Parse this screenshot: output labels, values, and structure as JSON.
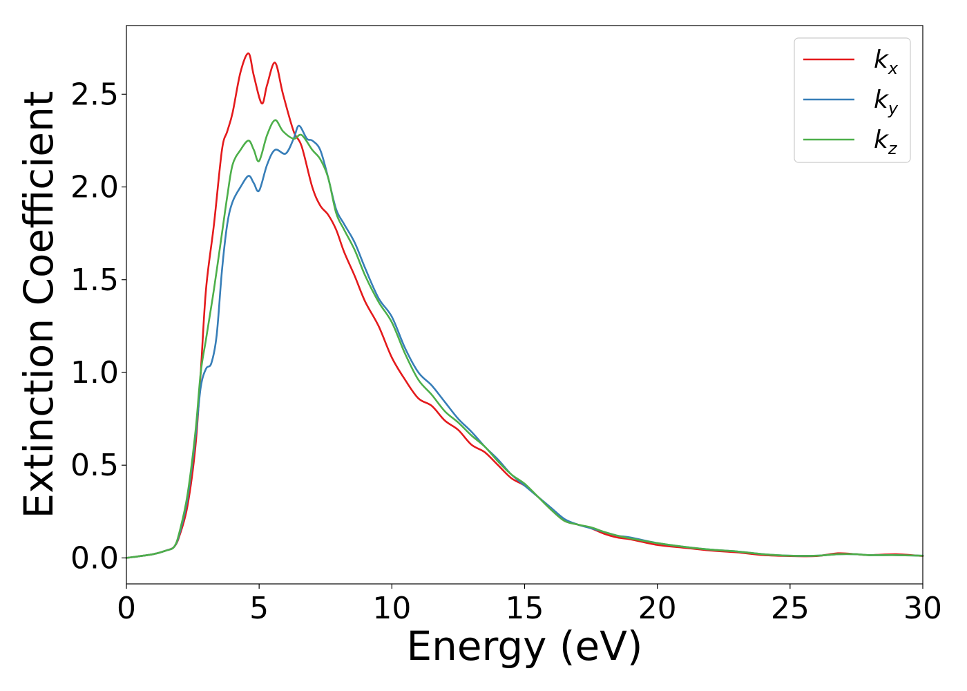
{
  "chart_data": {
    "type": "line",
    "title": "",
    "xlabel": "Energy (eV)",
    "ylabel": "Extinction Coefficient",
    "xlim": [
      0,
      30
    ],
    "ylim": [
      -0.14,
      2.87
    ],
    "xticks": [
      0,
      5,
      10,
      15,
      20,
      25,
      30
    ],
    "xtick_labels": [
      "0",
      "5",
      "10",
      "15",
      "20",
      "25",
      "30"
    ],
    "yticks": [
      0,
      0.5,
      1.0,
      1.5,
      2.0,
      2.5
    ],
    "ytick_labels": [
      "0.0",
      "0.5",
      "1.0",
      "1.5",
      "2.0",
      "2.5"
    ],
    "grid": false,
    "legend_position": "top-right",
    "series": [
      {
        "name": "k_x",
        "label_base": "k",
        "label_sub": "x",
        "color": "#e41a1c",
        "x": [
          0,
          1,
          1.5,
          1.8,
          2.0,
          2.3,
          2.6,
          2.8,
          3.0,
          3.3,
          3.6,
          3.8,
          4.0,
          4.3,
          4.6,
          4.8,
          5.1,
          5.3,
          5.6,
          5.9,
          6.3,
          6.6,
          7.0,
          7.3,
          7.6,
          7.9,
          8.2,
          8.6,
          9.0,
          9.5,
          10.0,
          10.5,
          11.0,
          11.5,
          12.0,
          12.5,
          13.0,
          13.5,
          14.0,
          14.5,
          15.0,
          15.5,
          16.0,
          16.5,
          17.0,
          17.5,
          18.0,
          18.5,
          19.0,
          20.0,
          21.0,
          22.0,
          23.0,
          24.0,
          25.0,
          26.0,
          26.8,
          27.5,
          28.0,
          29.0,
          30.0
        ],
        "y": [
          0.0,
          0.02,
          0.04,
          0.06,
          0.12,
          0.28,
          0.6,
          1.0,
          1.45,
          1.8,
          2.2,
          2.3,
          2.4,
          2.62,
          2.72,
          2.6,
          2.45,
          2.55,
          2.67,
          2.5,
          2.3,
          2.22,
          2.0,
          1.9,
          1.85,
          1.77,
          1.65,
          1.52,
          1.38,
          1.25,
          1.08,
          0.96,
          0.86,
          0.82,
          0.74,
          0.69,
          0.61,
          0.57,
          0.5,
          0.43,
          0.39,
          0.33,
          0.26,
          0.2,
          0.18,
          0.16,
          0.13,
          0.11,
          0.1,
          0.07,
          0.055,
          0.04,
          0.03,
          0.015,
          0.01,
          0.01,
          0.025,
          0.02,
          0.015,
          0.02,
          0.01
        ]
      },
      {
        "name": "k_y",
        "label_base": "k",
        "label_sub": "y",
        "color": "#377eb8",
        "x": [
          0,
          1,
          1.5,
          1.8,
          2.0,
          2.3,
          2.6,
          2.8,
          3.0,
          3.2,
          3.4,
          3.6,
          3.8,
          4.0,
          4.3,
          4.6,
          4.8,
          5.0,
          5.3,
          5.6,
          6.0,
          6.3,
          6.5,
          6.8,
          7.0,
          7.3,
          7.6,
          7.9,
          8.2,
          8.6,
          9.0,
          9.5,
          10.0,
          10.5,
          11.0,
          11.5,
          12.0,
          12.5,
          13.0,
          13.5,
          14.0,
          14.5,
          15.0,
          15.5,
          16.0,
          16.5,
          17.0,
          17.5,
          18.0,
          18.5,
          19.0,
          20.0,
          21.0,
          22.0,
          23.0,
          24.0,
          25.0,
          26.0,
          26.8,
          27.5,
          28.0,
          29.0,
          30.0
        ],
        "y": [
          0.0,
          0.02,
          0.04,
          0.06,
          0.13,
          0.32,
          0.65,
          0.92,
          1.02,
          1.05,
          1.2,
          1.55,
          1.8,
          1.92,
          2.0,
          2.06,
          2.02,
          1.98,
          2.12,
          2.2,
          2.18,
          2.26,
          2.33,
          2.26,
          2.25,
          2.2,
          2.05,
          1.88,
          1.8,
          1.7,
          1.56,
          1.4,
          1.3,
          1.13,
          1.0,
          0.93,
          0.84,
          0.75,
          0.68,
          0.6,
          0.53,
          0.45,
          0.39,
          0.33,
          0.27,
          0.21,
          0.18,
          0.16,
          0.14,
          0.12,
          0.11,
          0.08,
          0.06,
          0.045,
          0.035,
          0.02,
          0.012,
          0.012,
          0.02,
          0.02,
          0.015,
          0.015,
          0.012
        ]
      },
      {
        "name": "k_z",
        "label_base": "k",
        "label_sub": "z",
        "color": "#4daf4a",
        "x": [
          0,
          1,
          1.5,
          1.8,
          2.0,
          2.3,
          2.6,
          2.8,
          3.0,
          3.3,
          3.6,
          3.8,
          4.0,
          4.3,
          4.6,
          4.8,
          5.0,
          5.3,
          5.6,
          5.9,
          6.3,
          6.6,
          7.0,
          7.3,
          7.6,
          7.9,
          8.2,
          8.6,
          9.0,
          9.5,
          10.0,
          10.5,
          11.0,
          11.5,
          12.0,
          12.5,
          13.0,
          13.5,
          14.0,
          14.5,
          15.0,
          15.5,
          16.0,
          16.5,
          17.0,
          17.5,
          18.0,
          18.5,
          19.0,
          20.0,
          21.0,
          22.0,
          23.0,
          24.0,
          25.0,
          26.0,
          26.8,
          27.5,
          28.0,
          29.0,
          30.0
        ],
        "y": [
          0.0,
          0.02,
          0.04,
          0.06,
          0.14,
          0.34,
          0.68,
          1.0,
          1.18,
          1.45,
          1.75,
          1.95,
          2.12,
          2.2,
          2.25,
          2.2,
          2.14,
          2.28,
          2.36,
          2.3,
          2.26,
          2.28,
          2.2,
          2.15,
          2.05,
          1.86,
          1.77,
          1.66,
          1.52,
          1.38,
          1.27,
          1.1,
          0.96,
          0.88,
          0.79,
          0.73,
          0.66,
          0.6,
          0.52,
          0.45,
          0.4,
          0.33,
          0.26,
          0.2,
          0.18,
          0.165,
          0.14,
          0.12,
          0.105,
          0.08,
          0.06,
          0.045,
          0.035,
          0.02,
          0.012,
          0.012,
          0.02,
          0.02,
          0.015,
          0.015,
          0.012
        ]
      }
    ]
  }
}
